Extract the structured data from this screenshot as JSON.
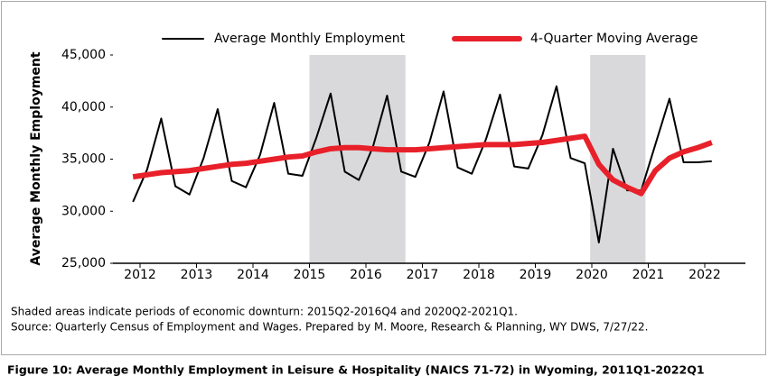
{
  "chart_data": {
    "type": "line",
    "ylabel": "Average Monthly Employment",
    "x": [
      2011.875,
      2012.125,
      2012.375,
      2012.625,
      2012.875,
      2013.125,
      2013.375,
      2013.625,
      2013.875,
      2014.125,
      2014.375,
      2014.625,
      2014.875,
      2015.125,
      2015.375,
      2015.625,
      2015.875,
      2016.125,
      2016.375,
      2016.625,
      2016.875,
      2017.125,
      2017.375,
      2017.625,
      2017.875,
      2018.125,
      2018.375,
      2018.625,
      2018.875,
      2019.125,
      2019.375,
      2019.625,
      2019.875,
      2020.125,
      2020.375,
      2020.625,
      2020.875,
      2021.125,
      2021.375,
      2021.625,
      2021.875,
      2022.125
    ],
    "series": [
      {
        "name": "Average Monthly Employment",
        "color": "#000000",
        "width": 2,
        "values": [
          30900,
          34000,
          38900,
          32400,
          31600,
          35100,
          39800,
          32900,
          32300,
          35400,
          40400,
          33600,
          33400,
          37100,
          41300,
          33800,
          33000,
          36200,
          41100,
          33800,
          33300,
          36600,
          41500,
          34200,
          33600,
          36900,
          41200,
          34300,
          34100,
          37300,
          42000,
          35100,
          34600,
          27000,
          36000,
          32000,
          32000,
          36400,
          40800,
          34700,
          34700,
          34800
        ]
      },
      {
        "name": "4-Quarter Moving Average",
        "color": "#e8202a",
        "width": 6,
        "values": [
          33300,
          33500,
          33700,
          33800,
          33900,
          34100,
          34300,
          34500,
          34600,
          34800,
          35000,
          35200,
          35300,
          35700,
          36000,
          36100,
          36100,
          36000,
          35900,
          35900,
          35900,
          36000,
          36100,
          36200,
          36300,
          36400,
          36400,
          36400,
          36500,
          36600,
          36800,
          37000,
          37200,
          34500,
          33000,
          32300,
          31700,
          33900,
          35100,
          35700,
          36100,
          36600
        ]
      }
    ],
    "shaded_ranges": [
      [
        2015.0,
        2016.7
      ],
      [
        2019.97,
        2020.95
      ]
    ],
    "shade_color": "#d9d9db",
    "xlim": [
      2011.52,
      2022.72
    ],
    "xticks": [
      2012,
      2013,
      2014,
      2015,
      2016,
      2017,
      2018,
      2019,
      2020,
      2021,
      2022
    ],
    "ylim": [
      25000,
      45000
    ],
    "yticks": [
      {
        "value": 25000,
        "label": "25,000"
      },
      {
        "value": 30000,
        "label": "30,000"
      },
      {
        "value": 35000,
        "label": "35,000"
      },
      {
        "value": 40000,
        "label": "40,000"
      },
      {
        "value": 45000,
        "label": "45,000"
      }
    ],
    "grid": false,
    "legend": "top",
    "notes": [
      "Shaded areas indicate periods of economic downturn: 2015Q2-2016Q4 and 2020Q2-2021Q1.",
      "Source: Quarterly Census of Employment and Wages. Prepared by M. Moore, Research & Planning, WY DWS, 7/27/22."
    ],
    "caption": "Figure 10: Average Monthly Employment in Leisure & Hospitality (NAICS 71-72) in Wyoming, 2011Q1-2022Q1"
  }
}
